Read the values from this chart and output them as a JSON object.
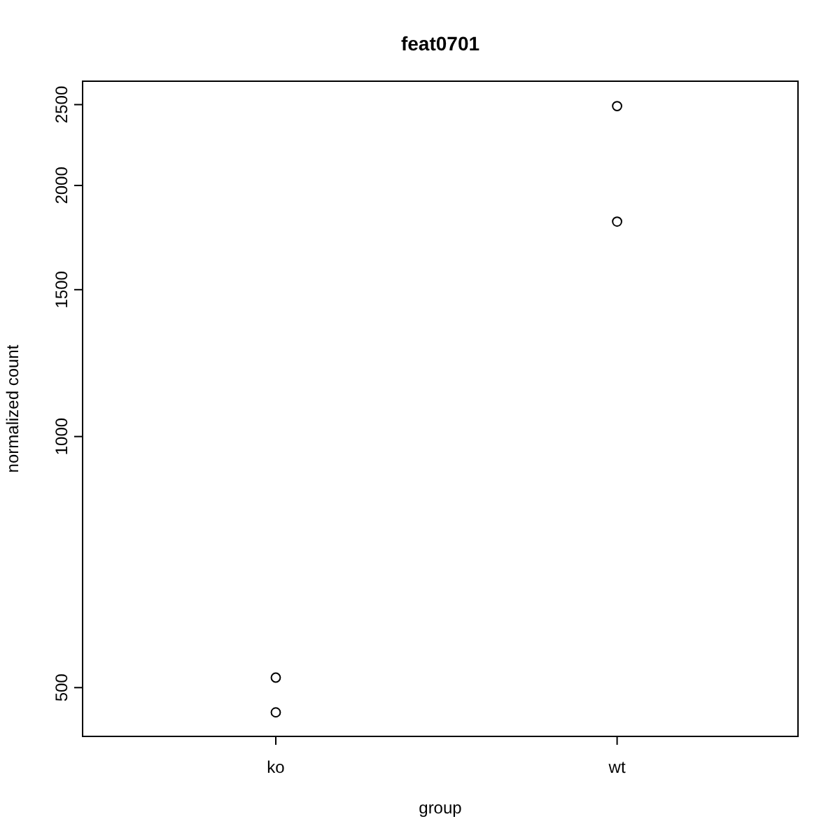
{
  "chart_data": {
    "type": "scatter",
    "title": "feat0701",
    "xlabel": "group",
    "ylabel": "normalized count",
    "categories": [
      "ko",
      "wt"
    ],
    "series": [
      {
        "color": "#000000",
        "x": [
          "ko",
          "ko",
          "wt",
          "wt"
        ],
        "values": [
          514,
          467,
          2490,
          1810
        ]
      }
    ],
    "log": "y",
    "ylim": [
      437,
      2667
    ],
    "yticks": [
      500,
      1000,
      1500,
      2000,
      2500
    ],
    "marker": "circle",
    "grid": false
  }
}
